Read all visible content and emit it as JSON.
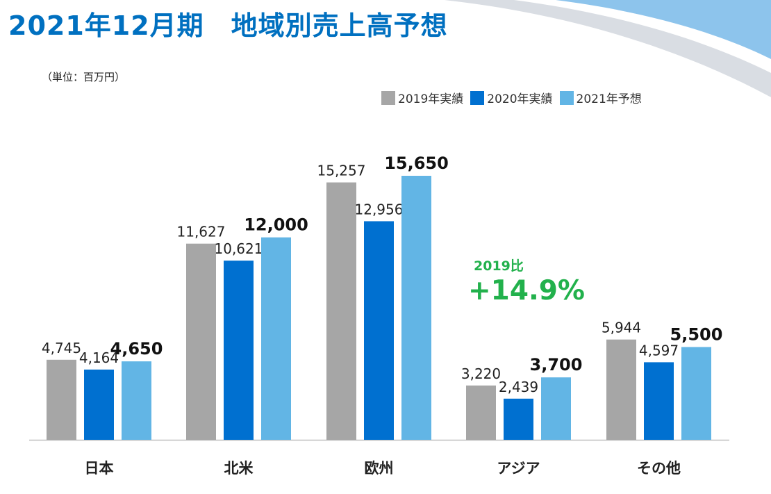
{
  "title": "2021年12月期　地域別売上高予想",
  "unit_label": "（単位：百万円）",
  "colors": {
    "s2019": "#a6a6a6",
    "s2020": "#0070d0",
    "s2021": "#62b5e5",
    "title": "#0070c0",
    "accent": "#22b14c"
  },
  "annotation": {
    "sub": "2019比",
    "main": "+14.9%"
  },
  "chart_data": {
    "type": "bar",
    "title": "2021年12月期　地域別売上高予想",
    "xlabel": "",
    "ylabel": "（単位：百万円）",
    "ylim": [
      0,
      16500
    ],
    "grid": false,
    "legend_position": "top-right",
    "categories": [
      "日本",
      "北米",
      "欧州",
      "アジア",
      "その他"
    ],
    "series": [
      {
        "name": "2019年実績",
        "values": [
          4745,
          11627,
          15257,
          3220,
          5944
        ],
        "labels": [
          "4,745",
          "11,627",
          "15,257",
          "3,220",
          "5,944"
        ]
      },
      {
        "name": "2020年実績",
        "values": [
          4164,
          10621,
          12956,
          2439,
          4597
        ],
        "labels": [
          "4,164",
          "10,621",
          "12,956",
          "2,439",
          "4,597"
        ]
      },
      {
        "name": "2021年予想",
        "values": [
          4650,
          12000,
          15650,
          3700,
          5500
        ],
        "labels": [
          "4,650",
          "12,000",
          "15,650",
          "3,700",
          "5,500"
        ]
      }
    ]
  }
}
